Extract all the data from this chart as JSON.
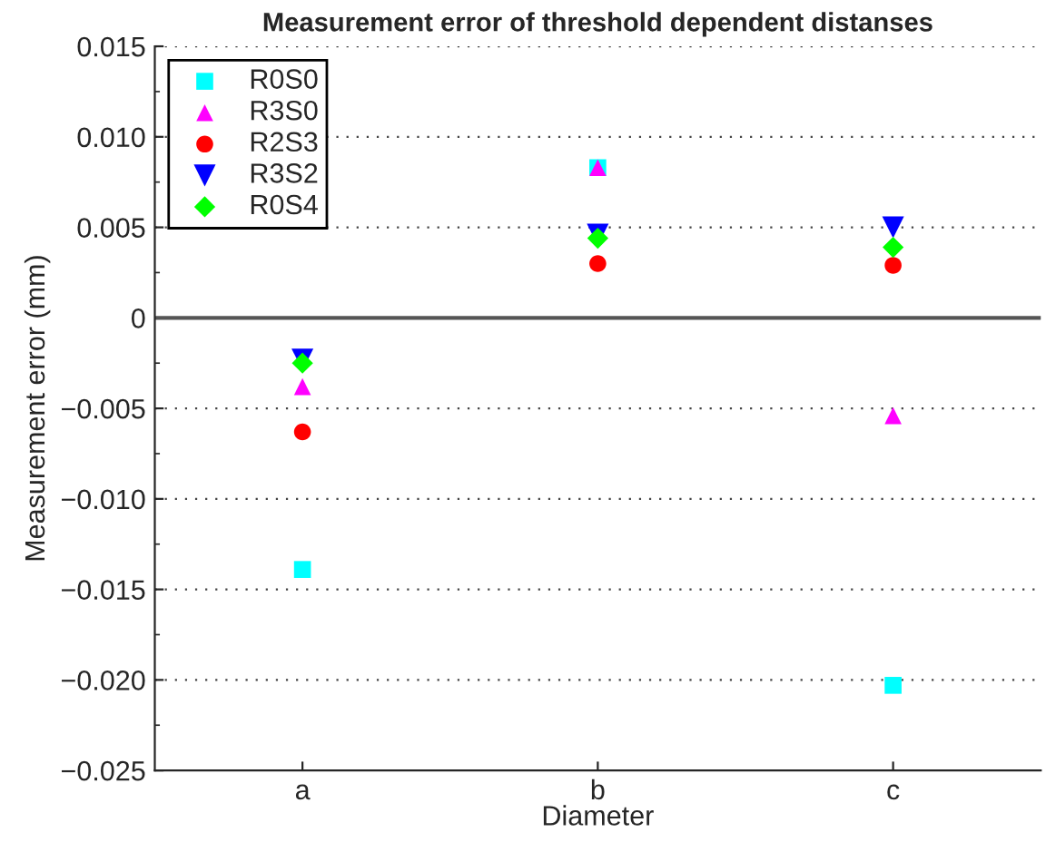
{
  "chart_data": {
    "type": "scatter",
    "title": "Measurement error of threshold dependent distanses",
    "xlabel": "Diameter",
    "ylabel": "Measurement error (mm)",
    "categories": [
      "a",
      "b",
      "c"
    ],
    "series": [
      {
        "name": "R0S0",
        "color": "#00ffff",
        "marker": "square",
        "values": [
          -0.0139,
          0.0083,
          -0.0203
        ]
      },
      {
        "name": "R3S0",
        "color": "#ff00ff",
        "marker": "triangle",
        "values": [
          -0.0038,
          0.0083,
          -0.0054
        ]
      },
      {
        "name": "R2S3",
        "color": "#ff0000",
        "marker": "circle",
        "values": [
          -0.0063,
          0.003,
          0.0029
        ]
      },
      {
        "name": "R3S2",
        "color": "#0000ff",
        "marker": "triangle_down",
        "values": [
          -0.0023,
          0.0046,
          0.005
        ]
      },
      {
        "name": "R0S4",
        "color": "#00ff00",
        "marker": "diamond",
        "values": [
          -0.0025,
          0.0044,
          0.0039
        ]
      }
    ],
    "ylim": [
      -0.025,
      0.015
    ],
    "yticks": [
      {
        "value": -0.025,
        "label": "−0.025"
      },
      {
        "value": -0.02,
        "label": "−0.020"
      },
      {
        "value": -0.015,
        "label": "−0.015"
      },
      {
        "value": -0.01,
        "label": "−0.010"
      },
      {
        "value": -0.005,
        "label": "−0.005"
      },
      0,
      {
        "value": 0.005,
        "label": "0.005"
      },
      {
        "value": 0.01,
        "label": "0.010"
      },
      {
        "value": 0.015,
        "label": "0.015"
      }
    ],
    "ref_lines": [
      {
        "axis": "y",
        "value": 0,
        "color": "#555555",
        "line_style": "solid"
      }
    ],
    "grid": "y",
    "legend": "top left"
  }
}
